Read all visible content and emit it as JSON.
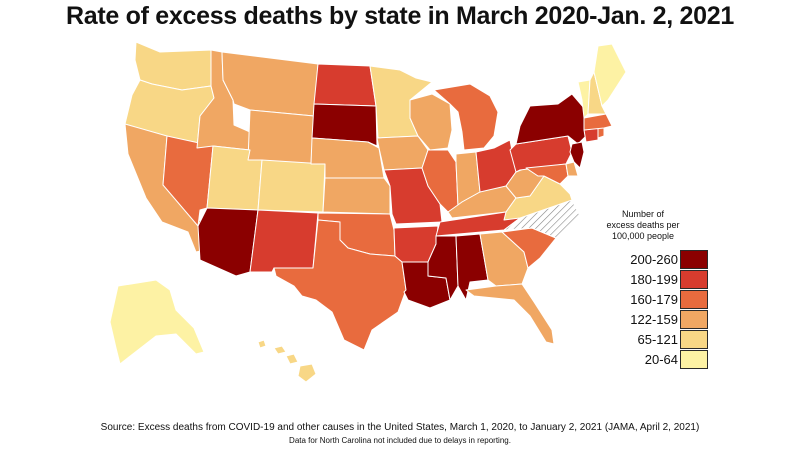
{
  "title": "Rate of excess deaths by state in March 2020-Jan. 2, 2021",
  "legend": {
    "title_lines": [
      "Number of",
      "excess deaths per",
      "100,000 people"
    ],
    "bins": [
      {
        "label": "200-260",
        "color": "#8b0000"
      },
      {
        "label": "180-199",
        "color": "#d73c2e"
      },
      {
        "label": "160-179",
        "color": "#e86b3e"
      },
      {
        "label": "122-159",
        "color": "#f0a763"
      },
      {
        "label": "65-121",
        "color": "#f8d786"
      },
      {
        "label": "20-64",
        "color": "#fdf2a4"
      }
    ]
  },
  "no_data": {
    "state": "North Carolina"
  },
  "states": [
    {
      "name": "Washington",
      "bin": 4
    },
    {
      "name": "Oregon",
      "bin": 4
    },
    {
      "name": "California",
      "bin": 3
    },
    {
      "name": "Nevada",
      "bin": 2
    },
    {
      "name": "Idaho",
      "bin": 3
    },
    {
      "name": "Montana",
      "bin": 3
    },
    {
      "name": "Wyoming",
      "bin": 3
    },
    {
      "name": "Utah",
      "bin": 4
    },
    {
      "name": "Colorado",
      "bin": 4
    },
    {
      "name": "Arizona",
      "bin": 0
    },
    {
      "name": "New Mexico",
      "bin": 1
    },
    {
      "name": "North Dakota",
      "bin": 1
    },
    {
      "name": "South Dakota",
      "bin": 0
    },
    {
      "name": "Nebraska",
      "bin": 3
    },
    {
      "name": "Kansas",
      "bin": 3
    },
    {
      "name": "Oklahoma",
      "bin": 2
    },
    {
      "name": "Texas",
      "bin": 2
    },
    {
      "name": "Minnesota",
      "bin": 4
    },
    {
      "name": "Iowa",
      "bin": 3
    },
    {
      "name": "Missouri",
      "bin": 1
    },
    {
      "name": "Arkansas",
      "bin": 1
    },
    {
      "name": "Louisiana",
      "bin": 0
    },
    {
      "name": "Wisconsin",
      "bin": 3
    },
    {
      "name": "Illinois",
      "bin": 2
    },
    {
      "name": "Michigan",
      "bin": 2
    },
    {
      "name": "Indiana",
      "bin": 3
    },
    {
      "name": "Ohio",
      "bin": 1
    },
    {
      "name": "Kentucky",
      "bin": 3
    },
    {
      "name": "Tennessee",
      "bin": 1
    },
    {
      "name": "Mississippi",
      "bin": 0
    },
    {
      "name": "Alabama",
      "bin": 0
    },
    {
      "name": "Georgia",
      "bin": 3
    },
    {
      "name": "Florida",
      "bin": 3
    },
    {
      "name": "South Carolina",
      "bin": 2
    },
    {
      "name": "North Carolina",
      "bin": null
    },
    {
      "name": "Virginia",
      "bin": 4
    },
    {
      "name": "West Virginia",
      "bin": 3
    },
    {
      "name": "Pennsylvania",
      "bin": 1
    },
    {
      "name": "New York",
      "bin": 0
    },
    {
      "name": "Maryland",
      "bin": 2
    },
    {
      "name": "Delaware",
      "bin": 3
    },
    {
      "name": "New Jersey",
      "bin": 0
    },
    {
      "name": "Connecticut",
      "bin": 1
    },
    {
      "name": "Rhode Island",
      "bin": 2
    },
    {
      "name": "Massachusetts",
      "bin": 2
    },
    {
      "name": "Vermont",
      "bin": 5
    },
    {
      "name": "New Hampshire",
      "bin": 4
    },
    {
      "name": "Maine",
      "bin": 5
    },
    {
      "name": "Alaska",
      "bin": 5
    },
    {
      "name": "Hawaii",
      "bin": 4
    }
  ],
  "source": "Source: Excess deaths from COVID-19 and other causes in the United States, March 1, 2020, to January 2, 2021 (JAMA, April 2, 2021)",
  "note": "Data for North Carolina not included due to delays in reporting."
}
